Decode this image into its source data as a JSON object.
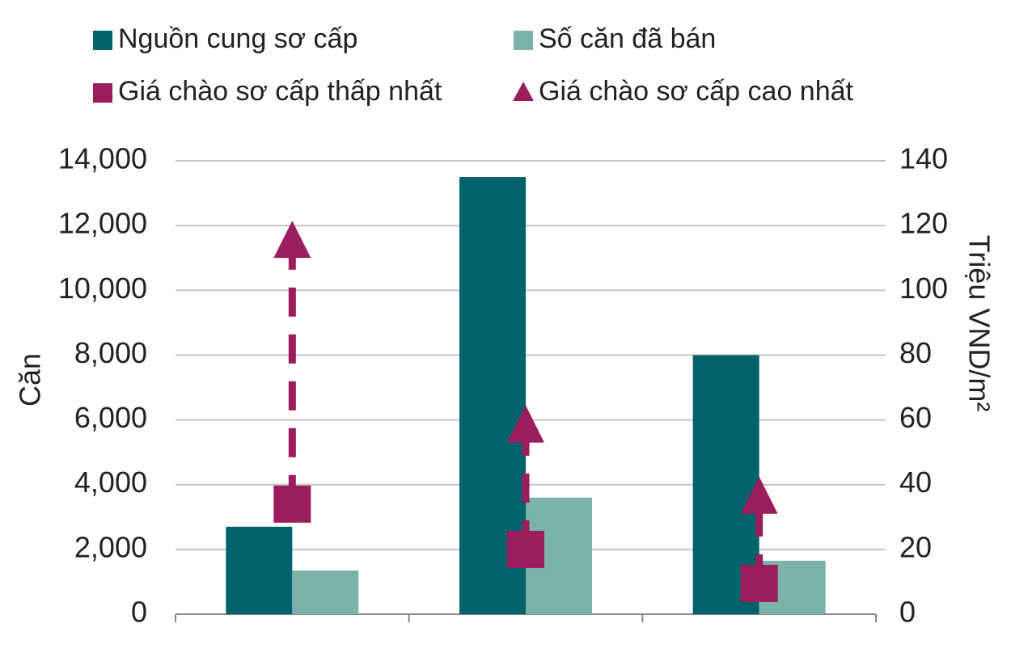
{
  "chart_data": {
    "type": "bar",
    "categories": [
      null,
      null,
      null
    ],
    "series": [
      {
        "name": "Nguồn cung sơ cấp",
        "color": "#00626c",
        "values": [
          2700,
          13500,
          8000
        ]
      },
      {
        "name": "Số căn đã bán",
        "color": "#7bb3aa",
        "values": [
          1350,
          3600,
          1650
        ]
      },
      {
        "name": "Giá chào sơ cấp thấp nhất",
        "color": "#9b1d5c",
        "marker": "square",
        "axis": "y2",
        "values": [
          34,
          20,
          9.5
        ]
      },
      {
        "name": "Giá chào sơ cấp cao nhất",
        "color": "#9b1d5c",
        "marker": "triangle",
        "axis": "y2",
        "values": [
          115,
          58,
          36
        ]
      }
    ],
    "ylabel": "Căn",
    "y2label": "Triệu VND/m²",
    "ylim": [
      0,
      14000
    ],
    "yticks": [
      0,
      {
        "value": 2000,
        "label": "2,000"
      },
      {
        "value": 4000,
        "label": "4,000"
      },
      {
        "value": 6000,
        "label": "6,000"
      },
      {
        "value": 8000,
        "label": "8,000"
      },
      {
        "value": 10000,
        "label": "10,000"
      },
      {
        "value": 12000,
        "label": "12,000"
      },
      {
        "value": 14000,
        "label": "14,000"
      }
    ],
    "y2lim": [
      0,
      140
    ],
    "y2ticks": [
      0,
      20,
      40,
      60,
      80,
      100,
      120,
      140
    ],
    "grid": true
  }
}
